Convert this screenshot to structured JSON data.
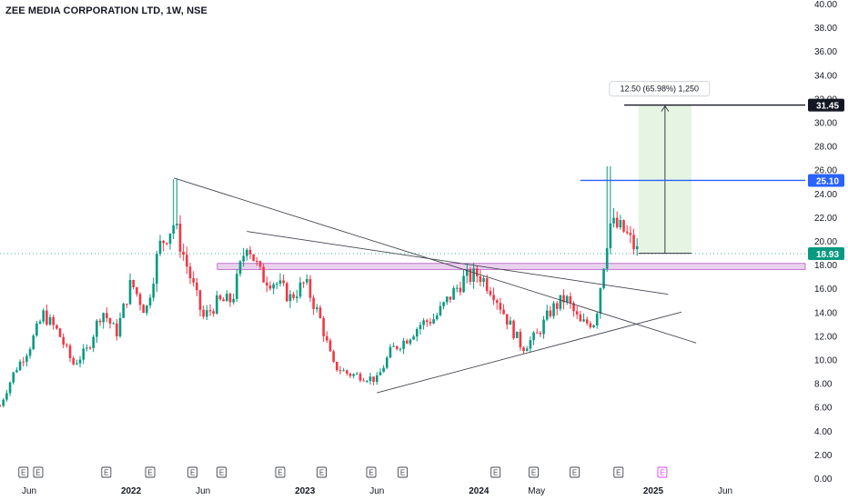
{
  "chart_data": {
    "type": "candlestick",
    "title": "ZEE MEDIA CORPORATION LTD, 1W, NSE",
    "ylim": [
      0,
      40
    ],
    "y_ticks": [
      "0.00",
      "2.00",
      "4.00",
      "6.00",
      "8.00",
      "10.00",
      "12.00",
      "14.00",
      "16.00",
      "18.00",
      "20.00",
      "22.00",
      "24.00",
      "26.00",
      "28.00",
      "30.00",
      "32.00",
      "34.00",
      "36.00",
      "38.00",
      "40.00"
    ],
    "x_ticks": [
      {
        "label": "Jun",
        "date": "2021-06",
        "bold": false
      },
      {
        "label": "2022",
        "date": "2022-01",
        "bold": true
      },
      {
        "label": "Jun",
        "date": "2022-06",
        "bold": false
      },
      {
        "label": "2023",
        "date": "2023-01",
        "bold": true
      },
      {
        "label": "Jun",
        "date": "2023-06",
        "bold": false
      },
      {
        "label": "2024",
        "date": "2024-01",
        "bold": true
      },
      {
        "label": "May",
        "date": "2024-05",
        "bold": false
      },
      {
        "label": "2025",
        "date": "2025-01",
        "bold": true
      },
      {
        "label": "Jun",
        "date": "2025-06",
        "bold": false
      }
    ],
    "closes": [
      {
        "date": "2021-04",
        "v": 6.1
      },
      {
        "date": "2021-05",
        "v": 9.0
      },
      {
        "date": "2021-06",
        "v": 11.0
      },
      {
        "date": "2021-07",
        "v": 13.8
      },
      {
        "date": "2021-08",
        "v": 12.3
      },
      {
        "date": "2021-09",
        "v": 9.6
      },
      {
        "date": "2021-10",
        "v": 10.8
      },
      {
        "date": "2021-11",
        "v": 14.2
      },
      {
        "date": "2021-12",
        "v": 12.2
      },
      {
        "date": "2022-01",
        "v": 16.5
      },
      {
        "date": "2022-02",
        "v": 14.0
      },
      {
        "date": "2022-03",
        "v": 19.5
      },
      {
        "date": "2022-04",
        "v": 21.5
      },
      {
        "date": "2022-05",
        "v": 17.5
      },
      {
        "date": "2022-06",
        "v": 13.5
      },
      {
        "date": "2022-07",
        "v": 14.8
      },
      {
        "date": "2022-08",
        "v": 15.0
      },
      {
        "date": "2022-09",
        "v": 20.0
      },
      {
        "date": "2022-10",
        "v": 17.0
      },
      {
        "date": "2022-11",
        "v": 16.5
      },
      {
        "date": "2022-12",
        "v": 15.2
      },
      {
        "date": "2023-01",
        "v": 16.5
      },
      {
        "date": "2023-02",
        "v": 13.5
      },
      {
        "date": "2023-03",
        "v": 9.5
      },
      {
        "date": "2023-04",
        "v": 8.8
      },
      {
        "date": "2023-05",
        "v": 8.6
      },
      {
        "date": "2023-06",
        "v": 8.3
      },
      {
        "date": "2023-07",
        "v": 10.8
      },
      {
        "date": "2023-08",
        "v": 11.7
      },
      {
        "date": "2023-09",
        "v": 13.0
      },
      {
        "date": "2023-10",
        "v": 13.5
      },
      {
        "date": "2023-11",
        "v": 15.3
      },
      {
        "date": "2023-12",
        "v": 16.8
      },
      {
        "date": "2024-01",
        "v": 17.2
      },
      {
        "date": "2024-02",
        "v": 15.7
      },
      {
        "date": "2024-03",
        "v": 13.3
      },
      {
        "date": "2024-04",
        "v": 11.0
      },
      {
        "date": "2024-05",
        "v": 12.0
      },
      {
        "date": "2024-06",
        "v": 14.2
      },
      {
        "date": "2024-07",
        "v": 15.2
      },
      {
        "date": "2024-08",
        "v": 13.0
      },
      {
        "date": "2024-09",
        "v": 13.2
      },
      {
        "date": "2024-10",
        "v": 21.5
      },
      {
        "date": "2024-11",
        "v": 20.8
      },
      {
        "date": "2024-12",
        "v": 18.93
      }
    ],
    "earnings_markers": [
      {
        "date": "2021-05-20",
        "label": "E",
        "future": false
      },
      {
        "date": "2021-06-20",
        "label": "E",
        "future": false
      },
      {
        "date": "2021-11-10",
        "label": "E",
        "future": false
      },
      {
        "date": "2022-02-10",
        "label": "E",
        "future": false
      },
      {
        "date": "2022-05-10",
        "label": "E",
        "future": false
      },
      {
        "date": "2022-07-10",
        "label": "E",
        "future": false
      },
      {
        "date": "2022-11-10",
        "label": "E",
        "future": false
      },
      {
        "date": "2023-02-05",
        "label": "E",
        "future": false
      },
      {
        "date": "2023-05-20",
        "label": "E",
        "future": false
      },
      {
        "date": "2023-07-25",
        "label": "E",
        "future": false
      },
      {
        "date": "2024-02-05",
        "label": "E",
        "future": false
      },
      {
        "date": "2024-04-25",
        "label": "E",
        "future": false
      },
      {
        "date": "2024-07-20",
        "label": "E",
        "future": false
      },
      {
        "date": "2024-10-20",
        "label": "E",
        "future": false
      },
      {
        "date": "2025-01-20",
        "label": "E",
        "future": true
      }
    ],
    "price_tags": [
      {
        "value": 31.45,
        "label": "31.45",
        "color": "#131722"
      },
      {
        "value": 25.1,
        "label": "25.10",
        "color": "#2962ff"
      },
      {
        "value": 18.93,
        "label": "18.93",
        "color": "#089981"
      }
    ],
    "horizontal_lines": [
      {
        "value": 25.1,
        "color": "#2962ff",
        "from": "2024-08"
      },
      {
        "value": 31.45,
        "color": "#131722",
        "from": "2024-11"
      }
    ],
    "support_zone": {
      "low": 17.6,
      "high": 18.1,
      "from": "2022-07",
      "color": "#e1bee7"
    },
    "trendlines": [
      {
        "from": {
          "date": "2022-04",
          "v": 25.3
        },
        "to": {
          "date": "2025-04",
          "v": 11.4
        }
      },
      {
        "from": {
          "date": "2022-09",
          "v": 20.8
        },
        "to": {
          "date": "2025-02",
          "v": 15.5
        }
      },
      {
        "from": {
          "date": "2023-06",
          "v": 7.2
        },
        "to": {
          "date": "2025-03",
          "v": 14.0
        }
      }
    ],
    "measurement": {
      "label": "12.50 (65.98%) 1,250",
      "from_value": 18.95,
      "to_value": 31.45,
      "from_date": "2024-12",
      "to_date": "2025-01",
      "fill": "#e6f4e3"
    },
    "colors": {
      "up": "#089981",
      "down": "#f23645",
      "grid": "#ffffff"
    }
  }
}
